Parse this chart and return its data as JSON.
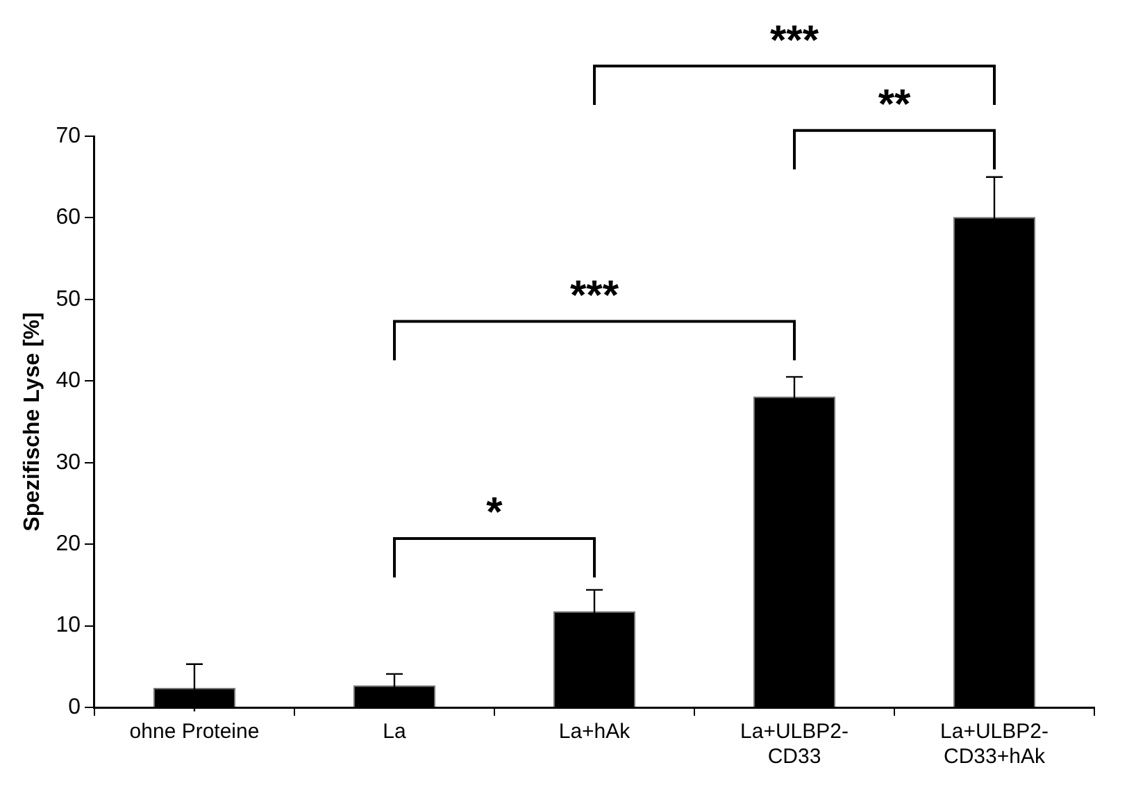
{
  "chart_data": {
    "type": "bar",
    "ylabel": "Spezifische Lyse [%]",
    "categories": [
      "ohne Proteine",
      "La",
      "La+hAk",
      "La+ULBP2-CD33",
      "La+ULBP2-CD33+hAk"
    ],
    "values": [
      2.4,
      2.7,
      11.8,
      38.1,
      60.1
    ],
    "errors": [
      2.9,
      1.4,
      2.6,
      2.4,
      4.9
    ],
    "color": "#000000",
    "ylim": [
      0,
      70
    ],
    "yticks": [
      0,
      10,
      20,
      30,
      40,
      50,
      60,
      70
    ],
    "grid": false,
    "legend": false,
    "annotations": [
      "*",
      "***",
      "**",
      "***"
    ]
  }
}
